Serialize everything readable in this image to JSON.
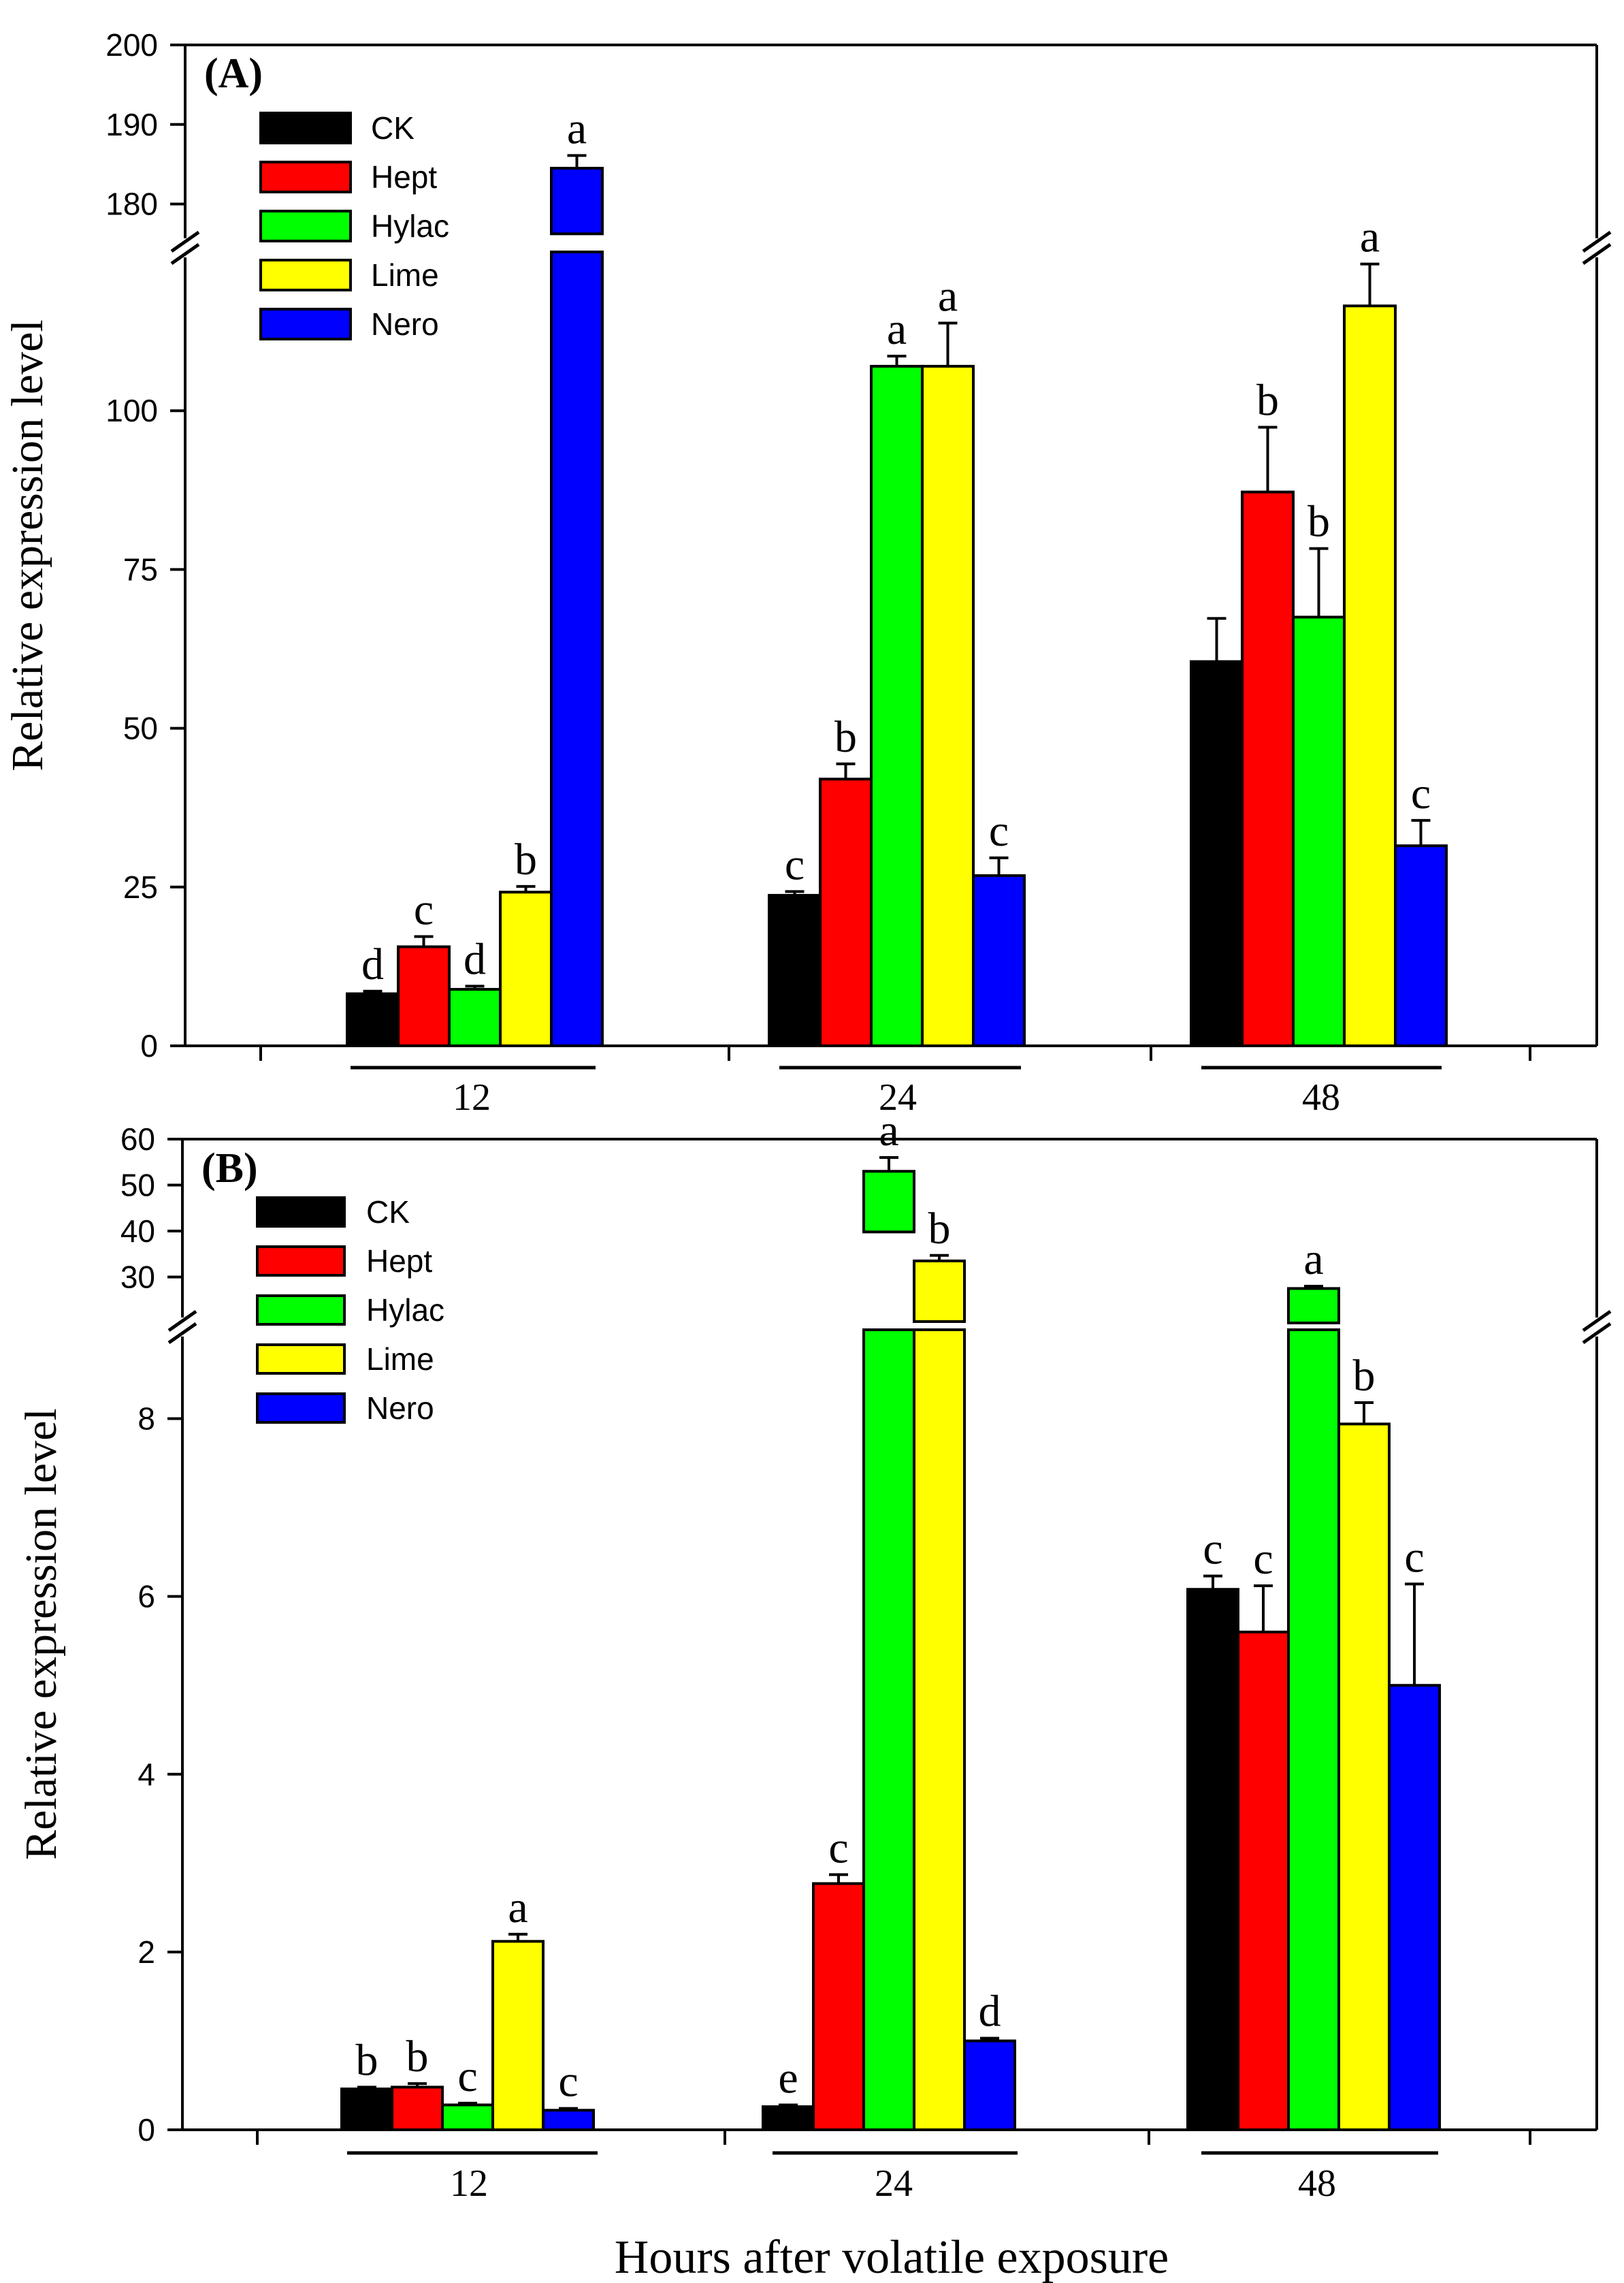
{
  "xlabel": "Hours after volatile exposure",
  "ylabel": "Relative expression level",
  "colors": {
    "CK": "#000000",
    "Hept": "#ff0000",
    "Hylac": "#00ff00",
    "Lime": "#ffff00",
    "Nero": "#0000ff"
  },
  "chart_data": [
    {
      "type": "bar",
      "panel_label": "(A)",
      "categories": [
        "12",
        "24",
        "48"
      ],
      "ylabel": "Relative expression level",
      "xlabel": "",
      "y_axis_break": {
        "lower_range": [
          0,
          125
        ],
        "upper_range": [
          175,
          200
        ]
      },
      "yticks_lower": [
        "0",
        "25",
        "50",
        "75",
        "100"
      ],
      "yticks_upper": [
        "180",
        "190",
        "200"
      ],
      "series": [
        {
          "name": "CK",
          "values": [
            8.2,
            23.7,
            60.5
          ],
          "errors": [
            0.4,
            0.6,
            6.8
          ],
          "letters": [
            "d",
            "c",
            ""
          ]
        },
        {
          "name": "Hept",
          "values": [
            15.6,
            42.0,
            87.2
          ],
          "errors": [
            1.6,
            2.4,
            10.2
          ],
          "letters": [
            "c",
            "b",
            "b"
          ]
        },
        {
          "name": "Hylac",
          "values": [
            8.9,
            107.0,
            67.5
          ],
          "errors": [
            0.5,
            1.6,
            10.8
          ],
          "letters": [
            "d",
            "a",
            "b"
          ]
        },
        {
          "name": "Lime",
          "values": [
            24.2,
            107.0,
            116.5
          ],
          "errors": [
            0.9,
            6.8,
            6.6
          ],
          "letters": [
            "b",
            "a",
            "a"
          ]
        },
        {
          "name": "Nero",
          "values": [
            184.5,
            26.8,
            31.5
          ],
          "errors": [
            1.6,
            2.8,
            4.0
          ],
          "letters": [
            "a",
            "c",
            "c"
          ]
        }
      ]
    },
    {
      "type": "bar",
      "panel_label": "(B)",
      "categories": [
        "12",
        "24",
        "48"
      ],
      "ylabel": "Relative expression level",
      "xlabel": "Hours after volatile exposure",
      "y_axis_break": {
        "lower_range": [
          0,
          9
        ],
        "upper_range": [
          20,
          60
        ]
      },
      "yticks_lower": [
        "0",
        "2",
        "4",
        "6",
        "8"
      ],
      "yticks_upper": [
        "30",
        "40",
        "50",
        "60"
      ],
      "series": [
        {
          "name": "CK",
          "values": [
            0.46,
            0.26,
            6.08
          ],
          "errors": [
            0.02,
            0.02,
            0.15
          ],
          "letters": [
            "b",
            "e",
            "c"
          ]
        },
        {
          "name": "Hept",
          "values": [
            0.48,
            2.77,
            5.6
          ],
          "errors": [
            0.04,
            0.1,
            0.52
          ],
          "letters": [
            "b",
            "c",
            "c"
          ]
        },
        {
          "name": "Hylac",
          "values": [
            0.28,
            53.0,
            27.5
          ],
          "errors": [
            0.02,
            3.0,
            0.5
          ],
          "letters": [
            "c",
            "a",
            "a"
          ]
        },
        {
          "name": "Lime",
          "values": [
            2.12,
            33.5,
            7.94
          ],
          "errors": [
            0.08,
            1.2,
            0.24
          ],
          "letters": [
            "a",
            "b",
            "b"
          ]
        },
        {
          "name": "Nero",
          "values": [
            0.22,
            1.0,
            5.0
          ],
          "errors": [
            0.02,
            0.03,
            1.14
          ],
          "letters": [
            "c",
            "d",
            "c"
          ]
        }
      ]
    }
  ]
}
